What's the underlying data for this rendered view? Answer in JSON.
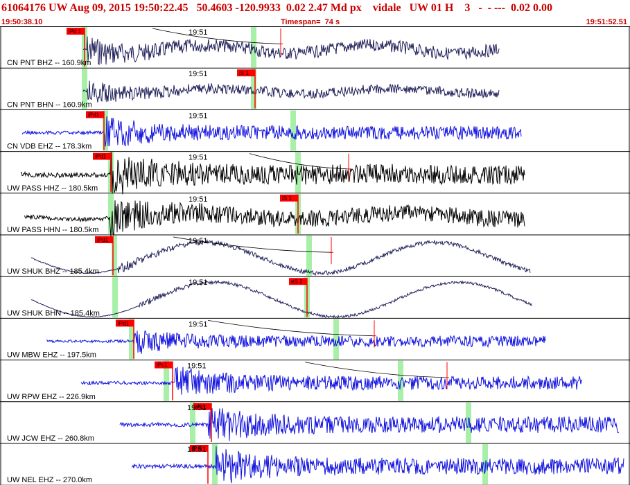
{
  "header": {
    "title": "61064176 UW Aug 09, 2015 19:50:22.45   50.4603 -120.9933  0.02 2.47 Md px    vidale   UW 01 H    3   -  - ---  0.02 0.00",
    "start_time": "19:50:38.10",
    "timespan": "Timespan=  74 s",
    "end_time": "19:51:52.51"
  },
  "colors": {
    "header_red": "#cc0000",
    "pick_red": "#ff0000",
    "window_green": "#a8f0a8",
    "navy": "#20205a",
    "blue": "#1010e0",
    "black": "#000000"
  },
  "traces": [
    {
      "station": "CN PNT BHZ -- 160.9km",
      "time_label": "19:51",
      "pick": "iPd 1",
      "color": "navy"
    },
    {
      "station": "CN PNT BHN -- 160.9km",
      "time_label": "19:51",
      "pick": "iS 1",
      "color": "navy"
    },
    {
      "station": "CN VDB EHZ -- 178.3km",
      "time_label": "19:51",
      "pick": "iPd1",
      "color": "blue"
    },
    {
      "station": "UW PASS HHZ -- 180.5km",
      "time_label": "19:51",
      "pick": "iPd1",
      "color": "black"
    },
    {
      "station": "UW PASS HHN -- 180.5km",
      "time_label": "19:51",
      "pick": "iS 1",
      "color": "black"
    },
    {
      "station": "UW SHUK BHZ -- 185.4km",
      "time_label": "19:51",
      "pick": "iPd1",
      "color": "navy"
    },
    {
      "station": "UW SHUK BHN -- 185.4km",
      "time_label": "19:51",
      "pick": "eS 2",
      "color": "navy"
    },
    {
      "station": "UW MBW EHZ -- 197.5km",
      "time_label": "19:51",
      "pick": "iPd1",
      "color": "blue"
    },
    {
      "station": "UW RPW EHZ -- 226.9km",
      "time_label": "19:51",
      "pick": "iPc1",
      "color": "blue"
    },
    {
      "station": "UW JCW EHZ -- 260.8km",
      "time_label": "19:51",
      "pick": "iPc1",
      "color": "blue"
    },
    {
      "station": "UW NEL EHZ -- 270.0km",
      "time_label": "19:51",
      "pick": "iP 0",
      "color": "blue"
    }
  ]
}
